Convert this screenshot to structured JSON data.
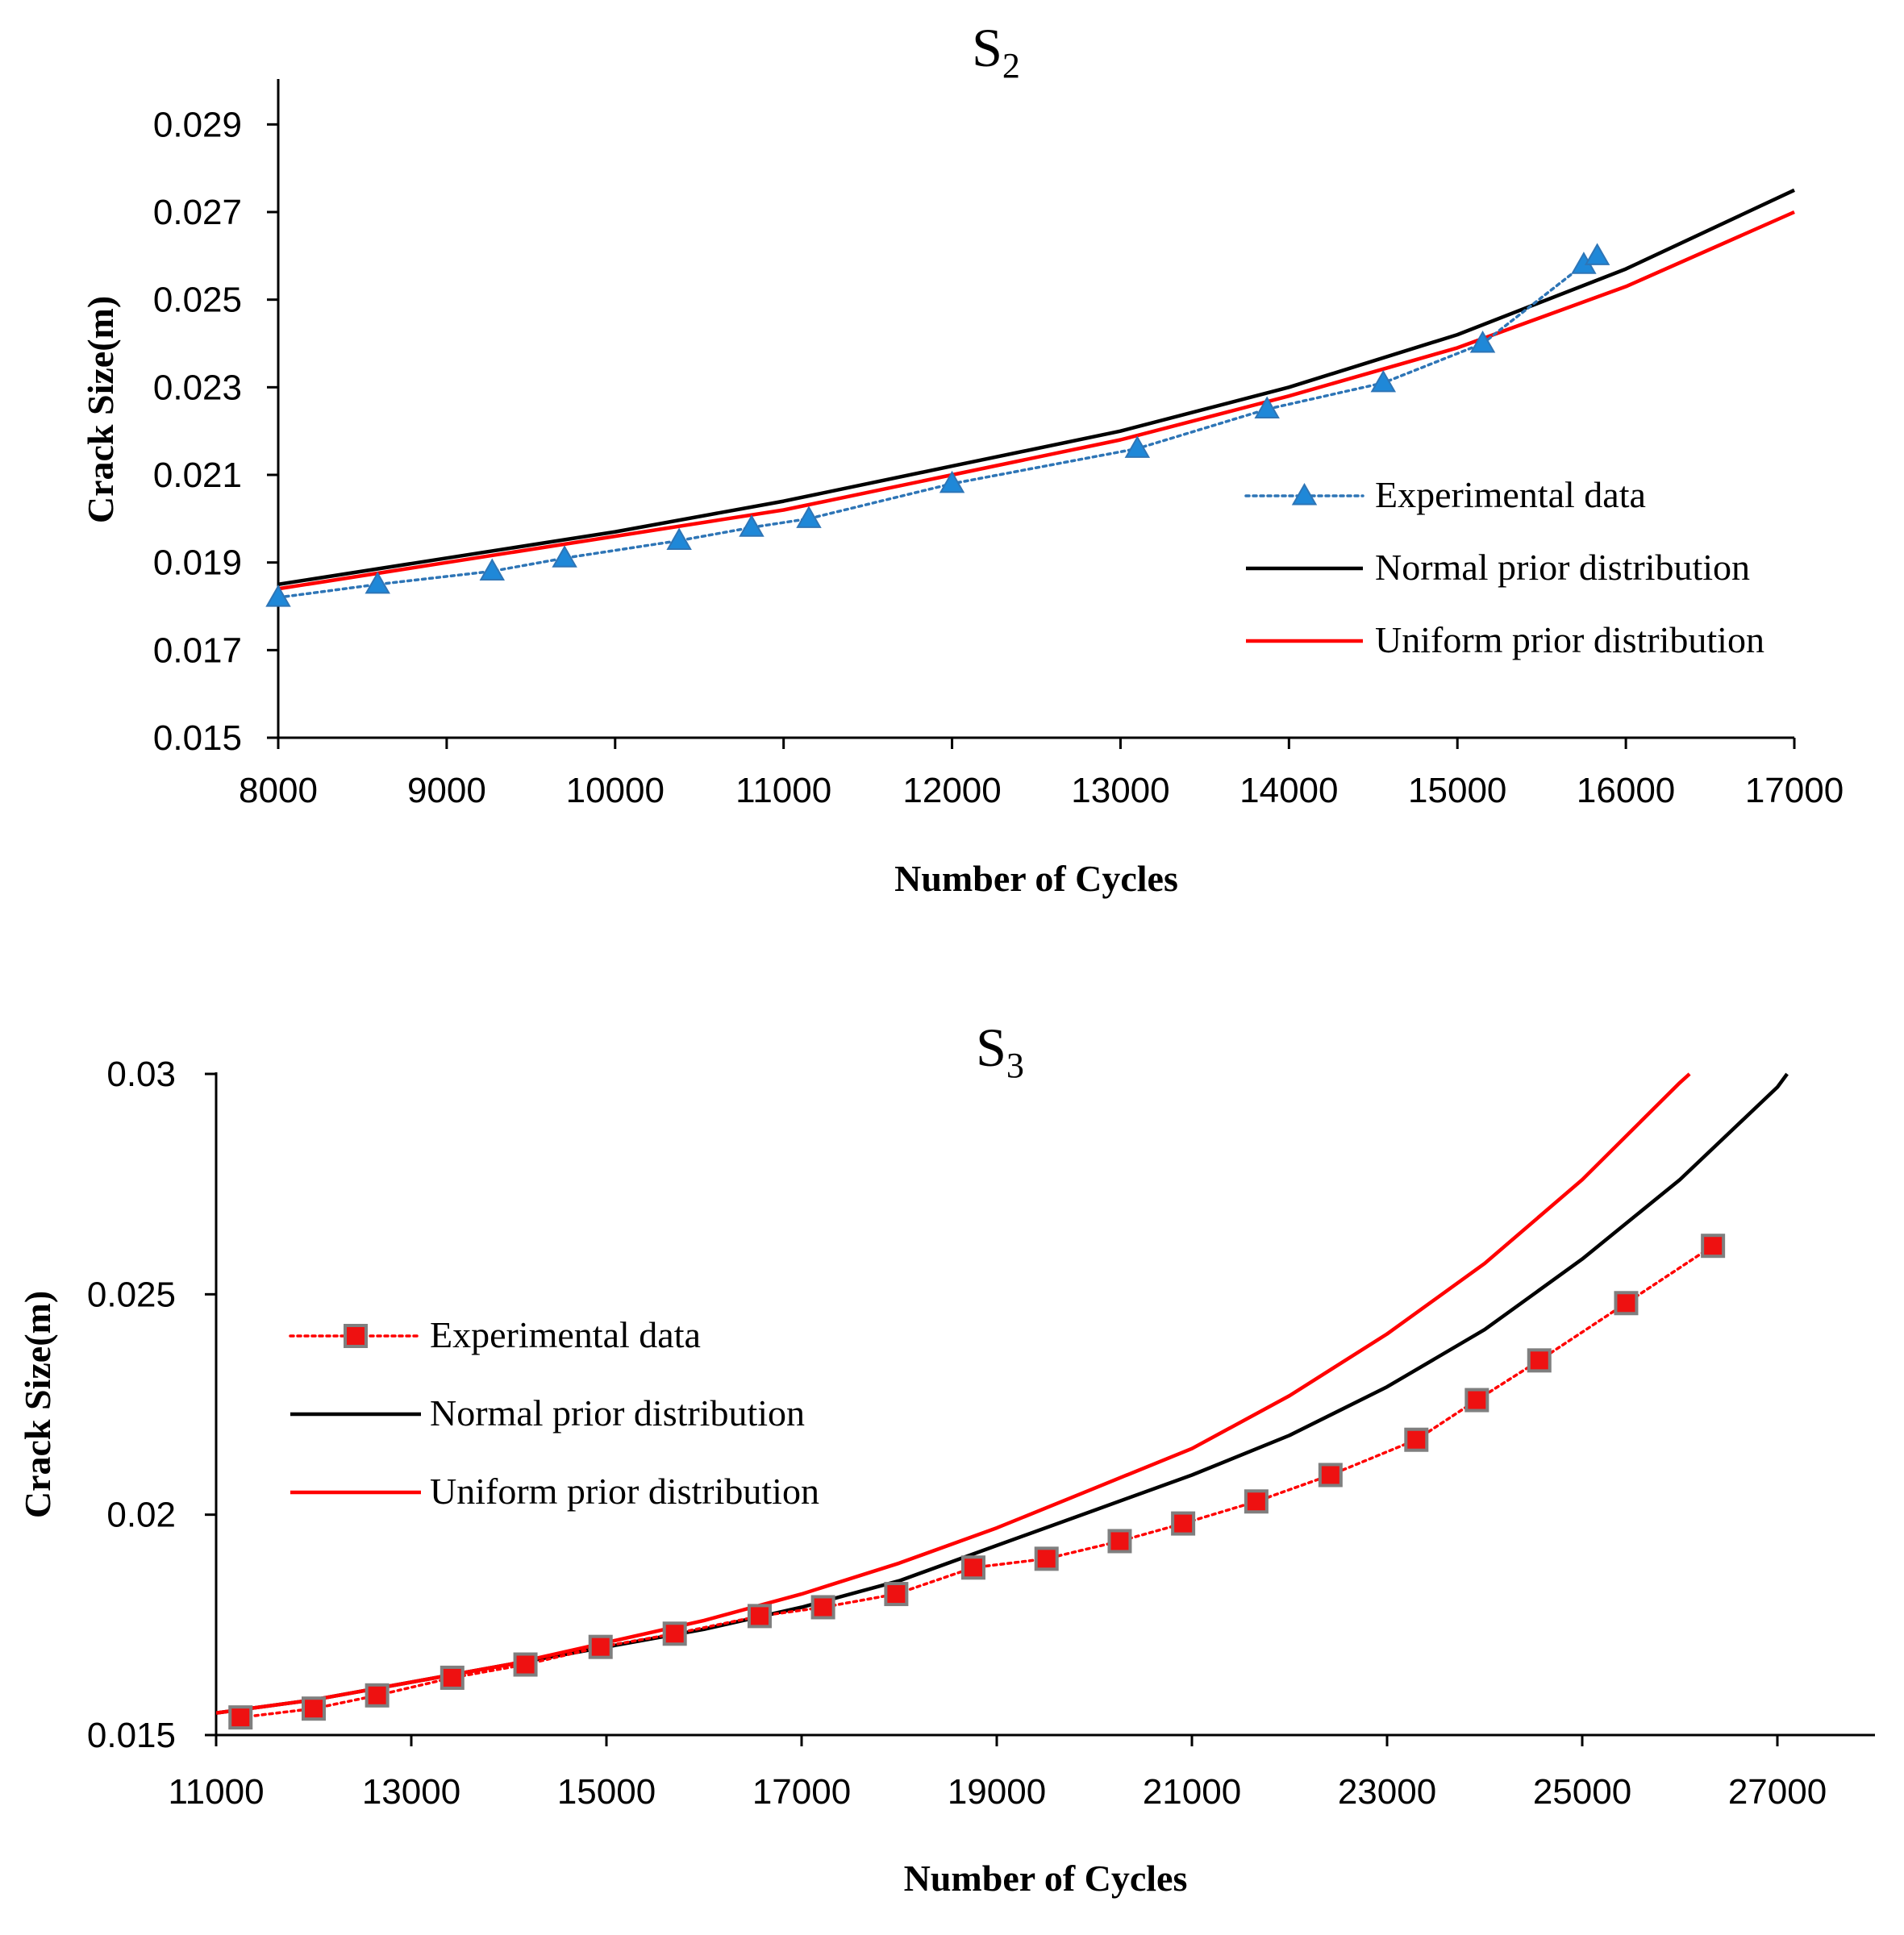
{
  "chart_data": [
    {
      "type": "line",
      "title": "S",
      "title_subscript": "2",
      "xlabel": "Number of Cycles",
      "ylabel": "Crack Size(m)",
      "xlim": [
        8000,
        17000
      ],
      "ylim": [
        0.015,
        0.03
      ],
      "xticks": [
        "8000",
        "9000",
        "10000",
        "11000",
        "12000",
        "13000",
        "14000",
        "15000",
        "16000",
        "17000"
      ],
      "yticks": [
        "0.015",
        "0.017",
        "0.019",
        "0.021",
        "0.023",
        "0.025",
        "0.027",
        "0.029"
      ],
      "legend_position": "right",
      "series": [
        {
          "name": "Experimental data",
          "style": "dotted-markers",
          "marker": "triangle",
          "color": "#2e75b6",
          "marker_fill": "#1f88d8",
          "x": [
            8000,
            8590,
            9270,
            9700,
            10380,
            10810,
            11150,
            12000,
            13100,
            13870,
            14560,
            15150,
            15750,
            15830
          ],
          "y": [
            0.0182,
            0.0185,
            0.0188,
            0.0191,
            0.0195,
            0.0198,
            0.02,
            0.0208,
            0.0216,
            0.0225,
            0.0231,
            0.024,
            0.0258,
            0.026
          ]
        },
        {
          "name": "Normal prior distribution",
          "style": "solid",
          "color": "#000000",
          "x": [
            8000,
            9000,
            10000,
            11000,
            12000,
            13000,
            14000,
            15000,
            16000,
            17000
          ],
          "y": [
            0.0185,
            0.0191,
            0.0197,
            0.0204,
            0.0212,
            0.022,
            0.023,
            0.0242,
            0.0257,
            0.0275
          ]
        },
        {
          "name": "Uniform  prior distribution",
          "style": "solid",
          "color": "#ff0000",
          "x": [
            8000,
            9000,
            10000,
            11000,
            12000,
            13000,
            14000,
            15000,
            16000,
            17000
          ],
          "y": [
            0.0184,
            0.019,
            0.0196,
            0.0202,
            0.021,
            0.0218,
            0.0228,
            0.0239,
            0.0253,
            0.027
          ]
        }
      ]
    },
    {
      "type": "line",
      "title": "S",
      "title_subscript": "3",
      "xlabel": "Number of Cycles",
      "ylabel": "Crack Size(m)",
      "xlim": [
        11000,
        28000
      ],
      "ylim": [
        0.015,
        0.03
      ],
      "xticks": [
        "11000",
        "13000",
        "15000",
        "17000",
        "19000",
        "21000",
        "23000",
        "25000",
        "27000"
      ],
      "yticks": [
        "0.015",
        "0.02",
        "0.025",
        "0.03"
      ],
      "legend_position": "left",
      "series": [
        {
          "name": "Experimental data",
          "style": "dotted-markers",
          "marker": "square",
          "color": "#ff0000",
          "marker_fill": "#ee1111",
          "x": [
            11250,
            12000,
            12650,
            13420,
            14170,
            14940,
            15700,
            16570,
            17220,
            17970,
            18760,
            19510,
            20260,
            20910,
            21660,
            22420,
            23300,
            23920,
            24560,
            25450,
            26340
          ],
          "y": [
            0.0154,
            0.0156,
            0.0159,
            0.0163,
            0.0166,
            0.017,
            0.0173,
            0.0177,
            0.0179,
            0.0182,
            0.0188,
            0.019,
            0.0194,
            0.0198,
            0.0203,
            0.0209,
            0.0217,
            0.0226,
            0.0235,
            0.0248,
            0.0261
          ]
        },
        {
          "name": "Normal prior distribution",
          "style": "solid",
          "color": "#000000",
          "x": [
            11000,
            12000,
            13000,
            14000,
            15000,
            16000,
            17000,
            18000,
            19000,
            20000,
            21000,
            22000,
            23000,
            24000,
            25000,
            26000,
            27000,
            27100
          ],
          "y": [
            0.0155,
            0.0158,
            0.0162,
            0.0166,
            0.017,
            0.0174,
            0.0179,
            0.0185,
            0.0193,
            0.0201,
            0.0209,
            0.0218,
            0.0229,
            0.0242,
            0.0258,
            0.0276,
            0.0297,
            0.03
          ]
        },
        {
          "name": "Uniform prior distribution",
          "style": "solid",
          "color": "#ff0000",
          "x": [
            11000,
            12000,
            13000,
            14000,
            15000,
            16000,
            17000,
            18000,
            19000,
            20000,
            21000,
            22000,
            23000,
            24000,
            25000,
            26000,
            26100
          ],
          "y": [
            0.0155,
            0.0158,
            0.0162,
            0.0166,
            0.0171,
            0.0176,
            0.0182,
            0.0189,
            0.0197,
            0.0206,
            0.0215,
            0.0227,
            0.0241,
            0.0257,
            0.0276,
            0.0298,
            0.03
          ]
        }
      ]
    }
  ]
}
